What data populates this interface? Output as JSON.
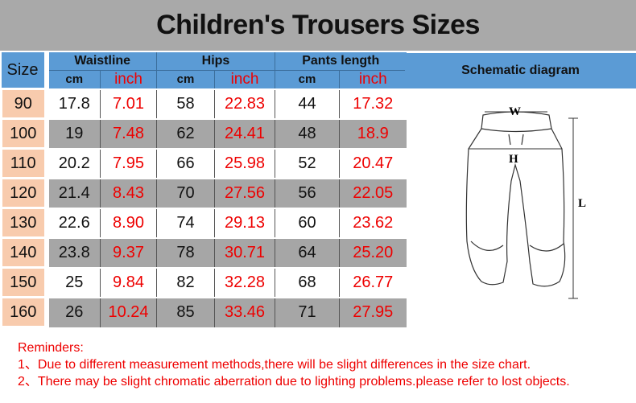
{
  "title": "Children's Trousers Sizes",
  "headers": {
    "size": "Size",
    "waistline": "Waistline",
    "hips": "Hips",
    "pants_length": "Pants length",
    "cm": "cm",
    "inch": "inch",
    "schematic": "Schematic diagram"
  },
  "rows": [
    [
      "90",
      "17.8",
      "7.01",
      "58",
      "22.83",
      "44",
      "17.32"
    ],
    [
      "100",
      "19",
      "7.48",
      "62",
      "24.41",
      "48",
      "18.9"
    ],
    [
      "110",
      "20.2",
      "7.95",
      "66",
      "25.98",
      "52",
      "20.47"
    ],
    [
      "120",
      "21.4",
      "8.43",
      "70",
      "27.56",
      "56",
      "22.05"
    ],
    [
      "130",
      "22.6",
      "8.90",
      "74",
      "29.13",
      "60",
      "23.62"
    ],
    [
      "140",
      "23.8",
      "9.37",
      "78",
      "30.71",
      "64",
      "25.20"
    ],
    [
      "150",
      "25",
      "9.84",
      "82",
      "32.28",
      "68",
      "26.77"
    ],
    [
      "160",
      "26",
      "10.24",
      "85",
      "33.46",
      "71",
      "27.95"
    ]
  ],
  "diagram_labels": {
    "w": "W",
    "h": "H",
    "l": "L"
  },
  "reminders": {
    "title": "Reminders:",
    "items": [
      "1、Due to different measurement methods,there will be slight differences in the size chart.",
      "2、There may be slight chromatic aberration due to lighting problems.please refer to lost objects."
    ]
  },
  "colors": {
    "header_blue": "#5b9bd5",
    "size_peach": "#f8cbad",
    "row_gray": "#a6a6a6",
    "inch_red": "#e00000"
  }
}
